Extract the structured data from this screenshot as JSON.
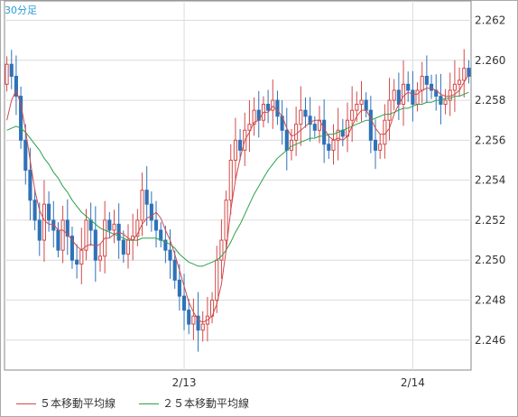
{
  "chart_data": {
    "type": "candlestick",
    "period_label": "30分足",
    "x_tick_labels": [
      "2/13",
      "2/14"
    ],
    "ylim": [
      2.2445,
      2.2627
    ],
    "y_ticks": [
      "2.262",
      "2.260",
      "2.258",
      "2.256",
      "2.254",
      "2.252",
      "2.250",
      "2.248",
      "2.246"
    ],
    "grid": true,
    "legend_position": "bottom",
    "series": [
      {
        "name": "５本移動平均線",
        "color": "#d24a4a"
      },
      {
        "name": "２５本移動平均線",
        "color": "#2aa04a"
      }
    ],
    "colors": {
      "up": "#d24a4a",
      "down": "#2f72b8",
      "grid": "#dcdcdc",
      "axis": "#888888"
    },
    "x_tick_positions": [
      38,
      87
    ],
    "close": [
      2.2598,
      2.2592,
      2.2582,
      2.256,
      2.2545,
      2.253,
      2.252,
      2.251,
      2.2528,
      2.252,
      2.2515,
      2.2505,
      2.252,
      2.2512,
      2.25,
      2.2498,
      2.2505,
      2.252,
      2.2515,
      2.25,
      2.2502,
      2.252,
      2.2515,
      2.2518,
      2.251,
      2.2503,
      2.251,
      2.2512,
      2.252,
      2.2535,
      2.2528,
      2.252,
      2.2515,
      2.251,
      2.2505,
      2.25,
      2.249,
      2.2482,
      2.2475,
      2.2468,
      2.2472,
      2.2465,
      2.2468,
      2.2472,
      2.248,
      2.25,
      2.251,
      2.253,
      2.255,
      2.256,
      2.2555,
      2.2565,
      2.2568,
      2.2575,
      2.257,
      2.2578,
      2.2575,
      2.258,
      2.2572,
      2.2565,
      2.2555,
      2.256,
      2.2568,
      2.2575,
      2.2572,
      2.2568,
      2.2565,
      2.257,
      2.2558,
      2.2555,
      2.256,
      2.2565,
      2.2562,
      2.257,
      2.2575,
      2.2578,
      2.258,
      2.2575,
      2.256,
      2.2555,
      2.2558,
      2.257,
      2.258,
      2.2585,
      2.2578,
      2.2588,
      2.2585,
      2.2578,
      2.2585,
      2.2592,
      2.2588,
      2.2585,
      2.2582,
      2.2578,
      2.258,
      2.2585,
      2.2588,
      2.259,
      2.2596,
      2.2592
    ],
    "ma5": [
      2.257,
      2.258,
      2.2585,
      2.2578,
      2.2565,
      2.255,
      2.2535,
      2.2525,
      2.252,
      2.2518,
      2.2518,
      2.2515,
      2.2515,
      2.2513,
      2.251,
      2.2507,
      2.2505,
      2.2507,
      2.2508,
      2.2507,
      2.2508,
      2.2511,
      2.2511,
      2.2513,
      2.2514,
      2.2513,
      2.2511,
      2.251,
      2.2513,
      2.2518,
      2.2521,
      2.2522,
      2.2524,
      2.2521,
      2.2515,
      2.251,
      2.2503,
      2.2495,
      2.2487,
      2.2479,
      2.2474,
      2.247,
      2.2469,
      2.247,
      2.2472,
      2.2478,
      2.2488,
      2.2505,
      2.2525,
      2.254,
      2.2551,
      2.256,
      2.2564,
      2.2569,
      2.257,
      2.2574,
      2.2574,
      2.2577,
      2.2575,
      2.2572,
      2.2566,
      2.2562,
      2.2563,
      2.2565,
      2.2567,
      2.2569,
      2.257,
      2.257,
      2.2566,
      2.2562,
      2.256,
      2.2561,
      2.256,
      2.2562,
      2.2567,
      2.2572,
      2.2575,
      2.2575,
      2.2571,
      2.2566,
      2.2563,
      2.2563,
      2.2566,
      2.2573,
      2.2578,
      2.2582,
      2.2584,
      2.2583,
      2.2583,
      2.2585,
      2.2586,
      2.2586,
      2.2585,
      2.2583,
      2.2582,
      2.2582,
      2.2583,
      2.2585,
      2.2589,
      2.2593
    ],
    "ma25": [
      2.2565,
      2.2566,
      2.2567,
      2.2566,
      2.2564,
      2.2561,
      2.2558,
      2.2555,
      2.2551,
      2.2548,
      2.2544,
      2.2541,
      2.2537,
      2.2534,
      2.253,
      2.2527,
      2.2524,
      2.2522,
      2.252,
      2.2518,
      2.2516,
      2.2515,
      2.2514,
      2.2513,
      2.2512,
      2.2511,
      2.251,
      2.251,
      2.251,
      2.2511,
      2.2511,
      2.2511,
      2.2511,
      2.251,
      2.2509,
      2.2508,
      2.2506,
      2.2503,
      2.2501,
      2.2499,
      2.2498,
      2.2497,
      2.2497,
      2.2498,
      2.2499,
      2.25,
      2.2502,
      2.2505,
      2.2509,
      2.2514,
      2.2518,
      2.2523,
      2.2528,
      2.2533,
      2.2537,
      2.2541,
      2.2545,
      2.2548,
      2.2551,
      2.2553,
      2.2555,
      2.2557,
      2.2558,
      2.2559,
      2.256,
      2.2561,
      2.2561,
      2.2562,
      2.2562,
      2.2563,
      2.2563,
      2.2564,
      2.2565,
      2.2566,
      2.2567,
      2.2568,
      2.2569,
      2.257,
      2.257,
      2.2571,
      2.2572,
      2.2573,
      2.2573,
      2.2574,
      2.2575,
      2.2576,
      2.2576,
      2.2577,
      2.2578,
      2.2578,
      2.2579,
      2.2579,
      2.258,
      2.258,
      2.2581,
      2.2581,
      2.2582,
      2.2582,
      2.2583,
      2.2584
    ]
  }
}
